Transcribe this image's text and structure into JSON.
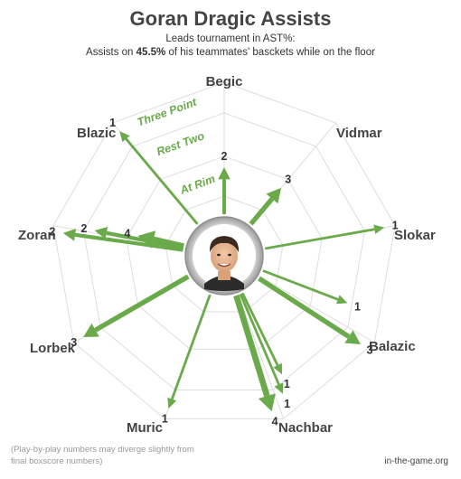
{
  "header": {
    "title": "Goran Dragic Assists",
    "subtitle_line1": "Leads tournament in AST%:",
    "subtitle_pre": "Assists on ",
    "subtitle_bold": "45.5%",
    "subtitle_post": " of his teammates' basckets while on the floor"
  },
  "footer": {
    "note": "(Play-by-play numbers may diverge slightly from final boxscore numbers)",
    "source": "in-the-game.org"
  },
  "colors": {
    "arrow": "#6aaa4a",
    "grid": "#dddddd",
    "ring_label": "#6aaa4a"
  },
  "chart_data": {
    "type": "radar",
    "rings": [
      "At Rim",
      "Rest Two",
      "Three Point"
    ],
    "players": [
      "Begic",
      "Vidmar",
      "Slokar",
      "Balazic",
      "Nachbar",
      "Muric",
      "Lorbek",
      "Zoran",
      "Blazic"
    ],
    "assists": [
      {
        "player": "Begic",
        "ring": "At Rim",
        "value": 2
      },
      {
        "player": "Vidmar",
        "ring": "At Rim",
        "value": 3
      },
      {
        "player": "Slokar",
        "ring": "Three Point",
        "value": 1
      },
      {
        "player": "Balazic",
        "ring": "Rest Two",
        "value": 1
      },
      {
        "player": "Balazic",
        "ring": "Three Point",
        "value": 3
      },
      {
        "player": "Nachbar",
        "ring": "Rest Two",
        "value": 1
      },
      {
        "player": "Nachbar",
        "ring": "Rest Two",
        "value": 1
      },
      {
        "player": "Nachbar",
        "ring": "Three Point",
        "value": 4
      },
      {
        "player": "Muric",
        "ring": "Three Point",
        "value": 1
      },
      {
        "player": "Lorbek",
        "ring": "Three Point",
        "value": 3
      },
      {
        "player": "Zoran",
        "ring": "Three Point",
        "value": 2
      },
      {
        "player": "Zoran",
        "ring": "Rest Two",
        "value": 2
      },
      {
        "player": "Zoran",
        "ring": "At Rim",
        "value": 4
      },
      {
        "player": "Blazic",
        "ring": "Three Point",
        "value": 1
      }
    ]
  }
}
